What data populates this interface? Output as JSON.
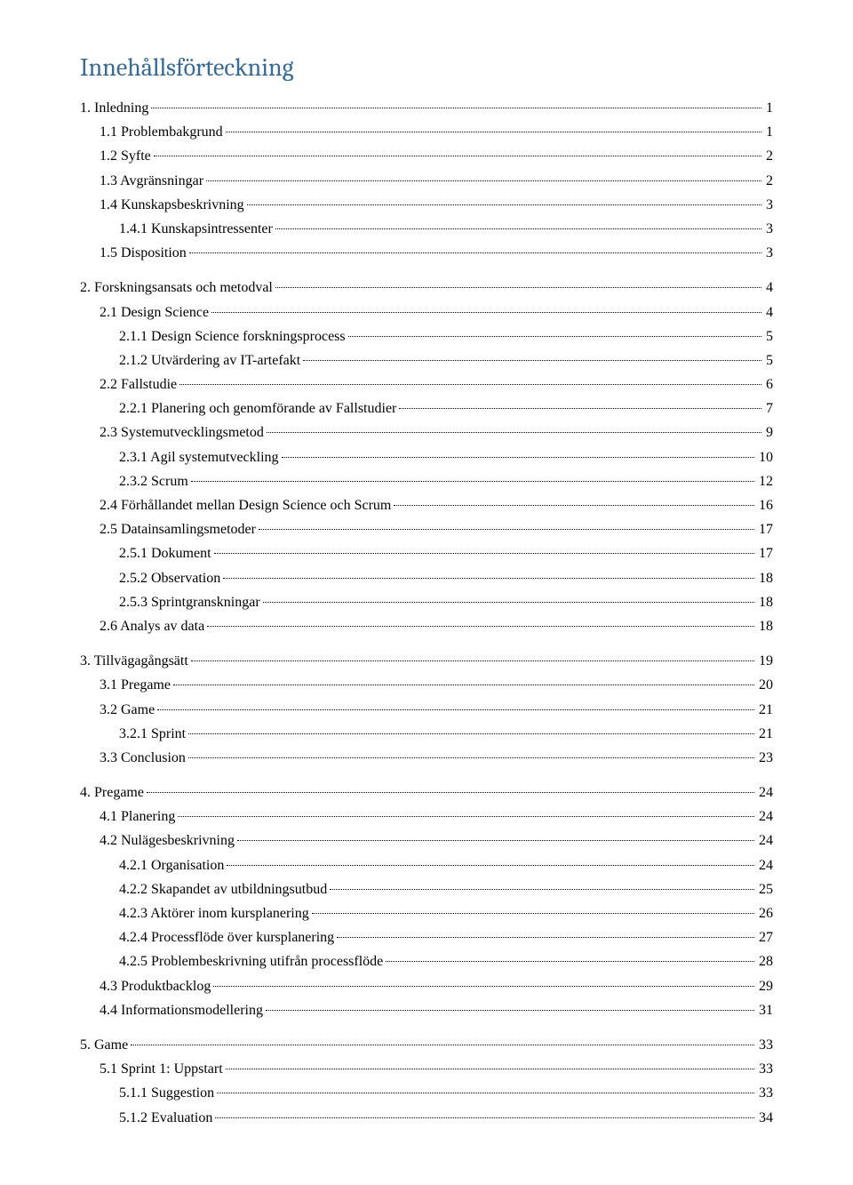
{
  "title": "Innehållsförteckning",
  "entries": [
    {
      "level": 0,
      "label": "1. Inledning",
      "page": "1"
    },
    {
      "level": 1,
      "label": "1.1 Problembakgrund",
      "page": "1"
    },
    {
      "level": 1,
      "label": "1.2 Syfte",
      "page": "2"
    },
    {
      "level": 1,
      "label": "1.3 Avgränsningar",
      "page": "2"
    },
    {
      "level": 1,
      "label": "1.4 Kunskapsbeskrivning",
      "page": "3"
    },
    {
      "level": 2,
      "label": "1.4.1 Kunskapsintressenter",
      "page": "3"
    },
    {
      "level": 1,
      "label": "1.5 Disposition",
      "page": "3"
    },
    {
      "level": 0,
      "label": "2. Forskningsansats och metodval",
      "page": "4"
    },
    {
      "level": 1,
      "label": "2.1 Design Science",
      "page": "4"
    },
    {
      "level": 2,
      "label": "2.1.1 Design Science forskningsprocess",
      "page": "5"
    },
    {
      "level": 2,
      "label": "2.1.2 Utvärdering av IT-artefakt",
      "page": "5"
    },
    {
      "level": 1,
      "label": "2.2 Fallstudie",
      "page": "6"
    },
    {
      "level": 2,
      "label": "2.2.1 Planering och genomförande av Fallstudier",
      "page": "7"
    },
    {
      "level": 1,
      "label": "2.3 Systemutvecklingsmetod",
      "page": "9"
    },
    {
      "level": 2,
      "label": "2.3.1 Agil systemutveckling",
      "page": "10"
    },
    {
      "level": 2,
      "label": "2.3.2 Scrum",
      "page": "12"
    },
    {
      "level": 1,
      "label": "2.4 Förhållandet mellan Design Science och Scrum",
      "page": "16"
    },
    {
      "level": 1,
      "label": "2.5 Datainsamlingsmetoder",
      "page": "17"
    },
    {
      "level": 2,
      "label": "2.5.1 Dokument",
      "page": "17"
    },
    {
      "level": 2,
      "label": "2.5.2 Observation",
      "page": "18"
    },
    {
      "level": 2,
      "label": "2.5.3 Sprintgranskningar",
      "page": "18"
    },
    {
      "level": 1,
      "label": "2.6 Analys av data",
      "page": "18"
    },
    {
      "level": 0,
      "label": "3. Tillvägagångsätt",
      "page": "19"
    },
    {
      "level": 1,
      "label": "3.1 Pregame",
      "page": "20"
    },
    {
      "level": 1,
      "label": "3.2 Game",
      "page": "21"
    },
    {
      "level": 2,
      "label": "3.2.1 Sprint",
      "page": "21"
    },
    {
      "level": 1,
      "label": "3.3 Conclusion",
      "page": "23"
    },
    {
      "level": 0,
      "label": "4. Pregame",
      "page": "24"
    },
    {
      "level": 1,
      "label": "4.1 Planering",
      "page": "24"
    },
    {
      "level": 1,
      "label": "4.2 Nulägesbeskrivning",
      "page": "24"
    },
    {
      "level": 2,
      "label": "4.2.1 Organisation",
      "page": "24"
    },
    {
      "level": 2,
      "label": "4.2.2 Skapandet av utbildningsutbud",
      "page": "25"
    },
    {
      "level": 2,
      "label": "4.2.3 Aktörer inom kursplanering",
      "page": "26"
    },
    {
      "level": 2,
      "label": "4.2.4 Processflöde över kursplanering",
      "page": "27"
    },
    {
      "level": 2,
      "label": "4.2.5 Problembeskrivning utifrån processflöde",
      "page": "28"
    },
    {
      "level": 1,
      "label": "4.3 Produktbacklog",
      "page": "29"
    },
    {
      "level": 1,
      "label": "4.4 Informationsmodellering",
      "page": "31"
    },
    {
      "level": 0,
      "label": "5. Game",
      "page": "33"
    },
    {
      "level": 1,
      "label": "5.1 Sprint 1: Uppstart",
      "page": "33"
    },
    {
      "level": 2,
      "label": "5.1.1 Suggestion",
      "page": "33"
    },
    {
      "level": 2,
      "label": "5.1.2 Evaluation",
      "page": "34"
    }
  ],
  "colors": {
    "title": "#3b6a92",
    "text": "#000000",
    "background": "#ffffff"
  },
  "fonts": {
    "title_family": "Cambria",
    "body_family": "Times New Roman",
    "title_size_pt": 21,
    "body_size_pt": 12
  }
}
